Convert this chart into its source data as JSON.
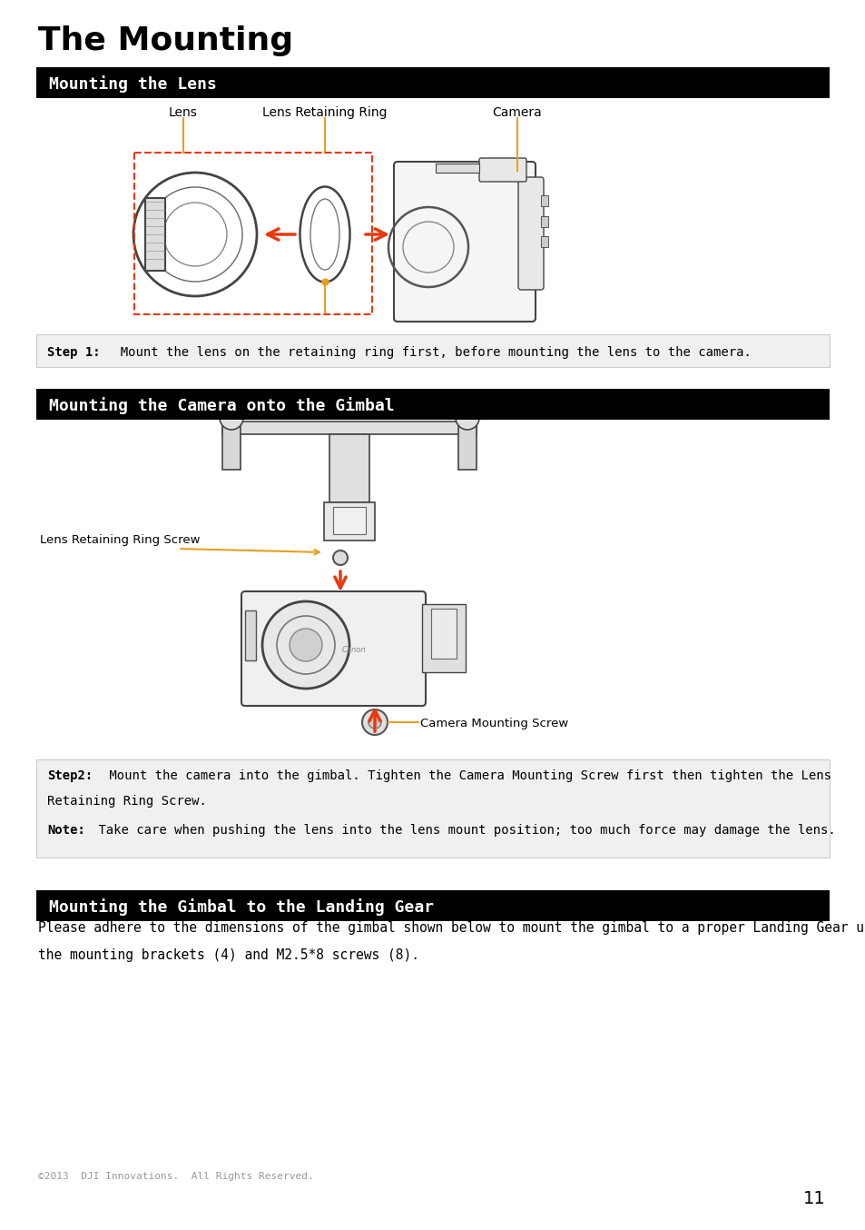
{
  "page_title": "The Mounting",
  "section1_title": "Mounting the Lens",
  "section2_title": "Mounting the Camera onto the Gimbal",
  "section3_title": "Mounting the Gimbal to the Landing Gear",
  "label_lens": "Lens",
  "label_retaining_ring": "Lens Retaining Ring",
  "label_camera": "Camera",
  "label_lens_screw": "Lens Retaining Ring Screw",
  "label_camera_screw": "Camera Mounting Screw",
  "step1_bold": "Step 1:",
  "step1_text": "  Mount the lens on the retaining ring first, before mounting the lens to the camera.",
  "step2_bold": "Step2:",
  "step2_line1": " Mount the camera into the gimbal. Tighten the Camera Mounting Screw first then tighten the Lens",
  "step2_line2": "Retaining Ring Screw.",
  "note_bold": "Note:",
  "note_text": " Take care when pushing the lens into the lens mount position; too much force may damage the lens.",
  "section3_line1": "Please adhere to the dimensions of the gimbal shown below to mount the gimbal to a proper Landing Gear using",
  "section3_line2": "the mounting brackets (4) and M2.5*8 screws (8).",
  "footer_text": "©2013  DJI Innovations.  All Rights Reserved.",
  "page_number": "11",
  "bg_color": "#ffffff",
  "section_bg_color": "#000000",
  "section_text_color": "#ffffff",
  "step_bg_color": "#f0f0f0",
  "arrow_color": "#e8380d",
  "yellow_color": "#e8a020",
  "dashed_box_color": "#e8380d"
}
